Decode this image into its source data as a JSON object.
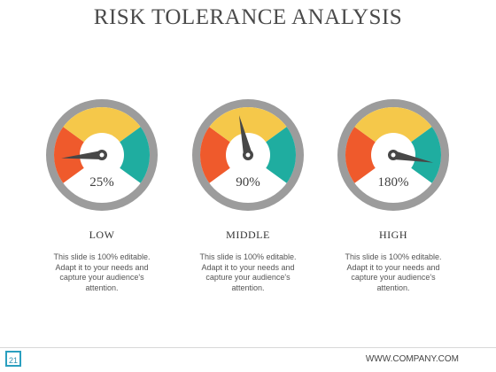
{
  "title": "RISK TOLERANCE ANALYSIS",
  "colors": {
    "ring": "#9c9c9c",
    "red": "#ef5a2c",
    "yellow": "#f5c84a",
    "teal": "#1fada0",
    "center": "#ffffff",
    "needle": "#474747"
  },
  "gauges": [
    {
      "value_label": "25%",
      "level": 0.25,
      "title": "LOW",
      "description": "This slide is 100% editable. Adapt it to your needs and capture your audience's attention."
    },
    {
      "value_label": "90%",
      "level": 0.9,
      "title": "MIDDLE",
      "description": "This slide is 100% editable. Adapt it to your needs and capture your audience's attention."
    },
    {
      "value_label": "180%",
      "level": 1.8,
      "title": "HIGH",
      "description": "This slide is 100% editable. Adapt it to your needs and capture your audience's attention."
    }
  ],
  "footer": {
    "page_number": "21",
    "company": "WWW.COMPANY.COM"
  }
}
